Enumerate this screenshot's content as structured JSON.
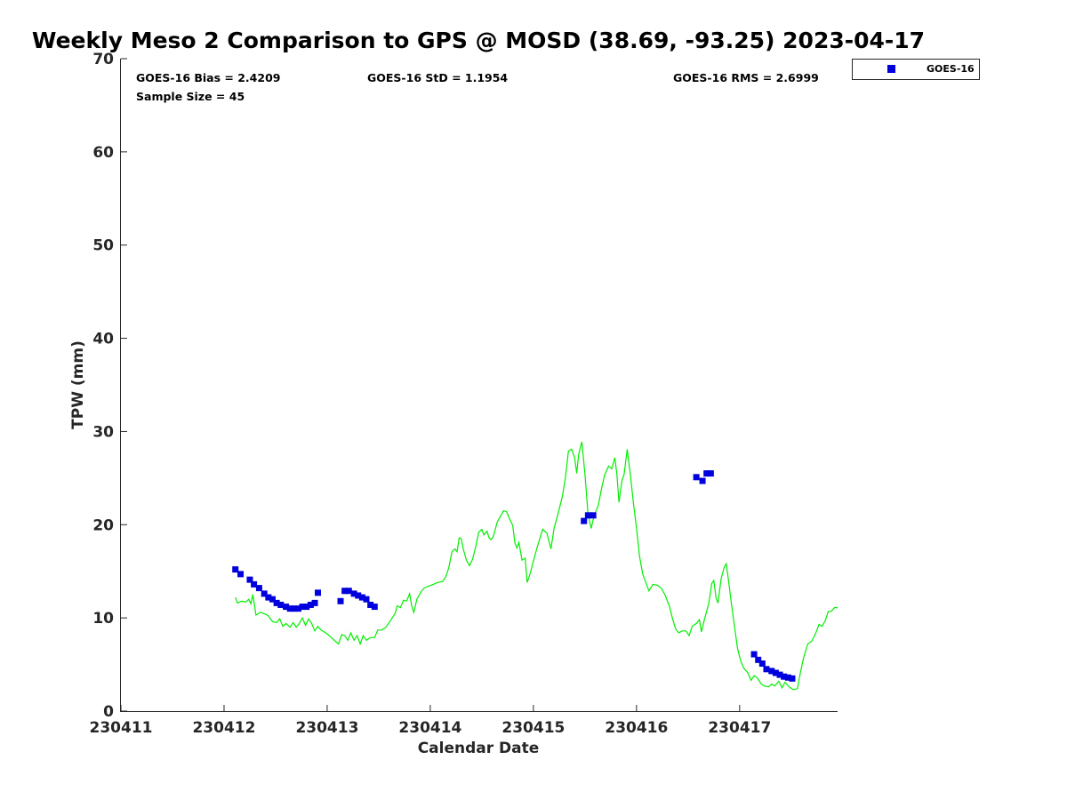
{
  "chart_data": {
    "type": "scatter",
    "title": "Weekly Meso 2 Comparison to GPS @ MOSD (38.69, -93.25) 2023-04-17",
    "xlabel": "Calendar Date",
    "ylabel": "TPW (mm)",
    "xlim": [
      0,
      6.95
    ],
    "ylim": [
      0,
      70
    ],
    "x_unit": "days since 230411",
    "x_ticks": [
      {
        "value": 0,
        "label": "230411"
      },
      {
        "value": 1,
        "label": "230412"
      },
      {
        "value": 2,
        "label": "230413"
      },
      {
        "value": 3,
        "label": "230414"
      },
      {
        "value": 4,
        "label": "230415"
      },
      {
        "value": 5,
        "label": "230416"
      },
      {
        "value": 6,
        "label": "230417"
      }
    ],
    "y_ticks": [
      0,
      10,
      20,
      30,
      40,
      50,
      60,
      70
    ],
    "grid": false,
    "legend_position": "top-right",
    "stats": {
      "bias": "GOES-16 Bias = 2.4209",
      "std": "GOES-16 StD = 1.1954",
      "rms": "GOES-16 RMS = 2.6999",
      "sample": "Sample Size = 45"
    },
    "colors": {
      "goes": "#0000dd",
      "gps": "#00ee00"
    },
    "series": [
      {
        "name": "GOES-16",
        "kind": "scatter",
        "color": "#0000dd",
        "points": [
          [
            1.11,
            15.2
          ],
          [
            1.16,
            14.7
          ],
          [
            1.25,
            14.1
          ],
          [
            1.29,
            13.6
          ],
          [
            1.34,
            13.2
          ],
          [
            1.39,
            12.6
          ],
          [
            1.43,
            12.2
          ],
          [
            1.47,
            12.0
          ],
          [
            1.51,
            11.6
          ],
          [
            1.55,
            11.4
          ],
          [
            1.6,
            11.2
          ],
          [
            1.64,
            11.0
          ],
          [
            1.68,
            11.0
          ],
          [
            1.72,
            11.0
          ],
          [
            1.76,
            11.2
          ],
          [
            1.8,
            11.2
          ],
          [
            1.84,
            11.4
          ],
          [
            1.88,
            11.6
          ],
          [
            1.91,
            12.7
          ],
          [
            2.13,
            11.8
          ],
          [
            2.17,
            12.9
          ],
          [
            2.21,
            12.9
          ],
          [
            2.26,
            12.6
          ],
          [
            2.3,
            12.4
          ],
          [
            2.34,
            12.2
          ],
          [
            2.38,
            12.0
          ],
          [
            2.42,
            11.4
          ],
          [
            2.46,
            11.2
          ],
          [
            4.49,
            20.4
          ],
          [
            4.53,
            21.0
          ],
          [
            4.58,
            21.0
          ],
          [
            5.58,
            25.1
          ],
          [
            5.64,
            24.7
          ],
          [
            5.68,
            25.5
          ],
          [
            5.72,
            25.5
          ],
          [
            6.14,
            6.1
          ],
          [
            6.18,
            5.5
          ],
          [
            6.22,
            5.1
          ],
          [
            6.26,
            4.5
          ],
          [
            6.31,
            4.3
          ],
          [
            6.35,
            4.1
          ],
          [
            6.39,
            3.9
          ],
          [
            6.43,
            3.7
          ],
          [
            6.47,
            3.6
          ],
          [
            6.51,
            3.5
          ]
        ]
      },
      {
        "kind": "line",
        "color": "#00ee00",
        "points": [
          [
            1.11,
            12.2
          ],
          [
            1.13,
            11.6
          ],
          [
            1.17,
            11.8
          ],
          [
            1.21,
            11.7
          ],
          [
            1.24,
            12.0
          ],
          [
            1.26,
            11.5
          ],
          [
            1.28,
            12.5
          ],
          [
            1.31,
            10.3
          ],
          [
            1.35,
            10.6
          ],
          [
            1.4,
            10.4
          ],
          [
            1.43,
            10.2
          ],
          [
            1.47,
            9.6
          ],
          [
            1.51,
            9.5
          ],
          [
            1.54,
            9.9
          ],
          [
            1.57,
            9.1
          ],
          [
            1.6,
            9.4
          ],
          [
            1.64,
            9.0
          ],
          [
            1.67,
            9.5
          ],
          [
            1.7,
            9.0
          ],
          [
            1.73,
            9.4
          ],
          [
            1.76,
            10.0
          ],
          [
            1.79,
            9.2
          ],
          [
            1.82,
            9.9
          ],
          [
            1.85,
            9.4
          ],
          [
            1.88,
            8.6
          ],
          [
            1.91,
            9.1
          ],
          [
            1.94,
            8.7
          ],
          [
            1.97,
            8.5
          ],
          [
            2.01,
            8.2
          ],
          [
            2.06,
            7.7
          ],
          [
            2.11,
            7.2
          ],
          [
            2.14,
            8.2
          ],
          [
            2.17,
            8.1
          ],
          [
            2.2,
            7.6
          ],
          [
            2.23,
            8.4
          ],
          [
            2.26,
            7.6
          ],
          [
            2.29,
            8.1
          ],
          [
            2.32,
            7.2
          ],
          [
            2.35,
            8.1
          ],
          [
            2.38,
            7.6
          ],
          [
            2.42,
            7.9
          ],
          [
            2.46,
            7.9
          ],
          [
            2.49,
            8.7
          ],
          [
            2.53,
            8.7
          ],
          [
            2.57,
            9.0
          ],
          [
            2.62,
            9.8
          ],
          [
            2.66,
            10.5
          ],
          [
            2.68,
            11.3
          ],
          [
            2.71,
            11.1
          ],
          [
            2.74,
            11.9
          ],
          [
            2.77,
            11.8
          ],
          [
            2.8,
            12.6
          ],
          [
            2.82,
            11.3
          ],
          [
            2.84,
            10.6
          ],
          [
            2.87,
            12.0
          ],
          [
            2.91,
            12.8
          ],
          [
            2.94,
            13.2
          ],
          [
            2.98,
            13.4
          ],
          [
            3.03,
            13.6
          ],
          [
            3.07,
            13.8
          ],
          [
            3.12,
            13.9
          ],
          [
            3.15,
            14.4
          ],
          [
            3.18,
            15.4
          ],
          [
            3.21,
            17.1
          ],
          [
            3.24,
            17.4
          ],
          [
            3.26,
            17.1
          ],
          [
            3.28,
            18.6
          ],
          [
            3.3,
            18.5
          ],
          [
            3.32,
            17.4
          ],
          [
            3.35,
            16.2
          ],
          [
            3.38,
            15.6
          ],
          [
            3.41,
            16.3
          ],
          [
            3.44,
            17.6
          ],
          [
            3.47,
            19.2
          ],
          [
            3.5,
            19.5
          ],
          [
            3.52,
            18.9
          ],
          [
            3.55,
            19.3
          ],
          [
            3.57,
            18.6
          ],
          [
            3.59,
            18.4
          ],
          [
            3.61,
            18.7
          ],
          [
            3.63,
            19.5
          ],
          [
            3.65,
            20.3
          ],
          [
            3.68,
            20.9
          ],
          [
            3.71,
            21.5
          ],
          [
            3.74,
            21.4
          ],
          [
            3.77,
            20.6
          ],
          [
            3.8,
            19.9
          ],
          [
            3.82,
            18.1
          ],
          [
            3.84,
            17.5
          ],
          [
            3.86,
            18.1
          ],
          [
            3.89,
            16.2
          ],
          [
            3.92,
            16.4
          ],
          [
            3.94,
            13.8
          ],
          [
            3.97,
            14.8
          ],
          [
            4.0,
            16.1
          ],
          [
            4.04,
            17.7
          ],
          [
            4.09,
            19.5
          ],
          [
            4.13,
            19.1
          ],
          [
            4.17,
            17.4
          ],
          [
            4.2,
            19.6
          ],
          [
            4.24,
            21.2
          ],
          [
            4.28,
            23.0
          ],
          [
            4.31,
            25.0
          ],
          [
            4.34,
            27.9
          ],
          [
            4.37,
            28.1
          ],
          [
            4.4,
            27.2
          ],
          [
            4.42,
            25.5
          ],
          [
            4.44,
            27.6
          ],
          [
            4.47,
            28.9
          ],
          [
            4.5,
            25.4
          ],
          [
            4.53,
            21.1
          ],
          [
            4.56,
            19.6
          ],
          [
            4.59,
            21.0
          ],
          [
            4.63,
            22.1
          ],
          [
            4.66,
            23.8
          ],
          [
            4.69,
            25.3
          ],
          [
            4.73,
            26.3
          ],
          [
            4.76,
            26.0
          ],
          [
            4.79,
            27.2
          ],
          [
            4.81,
            25.4
          ],
          [
            4.83,
            22.4
          ],
          [
            4.86,
            24.8
          ],
          [
            4.88,
            25.4
          ],
          [
            4.91,
            28.1
          ],
          [
            4.94,
            25.4
          ],
          [
            4.97,
            22.3
          ],
          [
            5.0,
            19.6
          ],
          [
            5.03,
            16.6
          ],
          [
            5.06,
            14.7
          ],
          [
            5.09,
            13.8
          ],
          [
            5.12,
            12.9
          ],
          [
            5.16,
            13.6
          ],
          [
            5.2,
            13.5
          ],
          [
            5.24,
            13.2
          ],
          [
            5.28,
            12.4
          ],
          [
            5.32,
            11.2
          ],
          [
            5.35,
            9.9
          ],
          [
            5.38,
            8.8
          ],
          [
            5.41,
            8.4
          ],
          [
            5.44,
            8.6
          ],
          [
            5.48,
            8.6
          ],
          [
            5.51,
            8.1
          ],
          [
            5.54,
            9.1
          ],
          [
            5.58,
            9.4
          ],
          [
            5.61,
            9.8
          ],
          [
            5.63,
            8.5
          ],
          [
            5.66,
            9.9
          ],
          [
            5.7,
            11.5
          ],
          [
            5.73,
            13.7
          ],
          [
            5.75,
            14.0
          ],
          [
            5.77,
            12.2
          ],
          [
            5.79,
            11.6
          ],
          [
            5.82,
            14.2
          ],
          [
            5.85,
            15.4
          ],
          [
            5.87,
            15.8
          ],
          [
            5.89,
            14.2
          ],
          [
            5.92,
            11.6
          ],
          [
            5.95,
            9.1
          ],
          [
            5.98,
            6.7
          ],
          [
            6.01,
            5.4
          ],
          [
            6.04,
            4.6
          ],
          [
            6.08,
            4.1
          ],
          [
            6.11,
            3.3
          ],
          [
            6.14,
            3.8
          ],
          [
            6.17,
            3.6
          ],
          [
            6.21,
            2.9
          ],
          [
            6.24,
            2.7
          ],
          [
            6.28,
            2.6
          ],
          [
            6.31,
            2.9
          ],
          [
            6.34,
            2.7
          ],
          [
            6.38,
            3.2
          ],
          [
            6.41,
            2.5
          ],
          [
            6.44,
            3.1
          ],
          [
            6.48,
            2.6
          ],
          [
            6.52,
            2.3
          ],
          [
            6.56,
            2.4
          ],
          [
            6.59,
            4.2
          ],
          [
            6.62,
            5.7
          ],
          [
            6.66,
            7.2
          ],
          [
            6.7,
            7.5
          ],
          [
            6.74,
            8.4
          ],
          [
            6.77,
            9.3
          ],
          [
            6.8,
            9.1
          ],
          [
            6.83,
            9.7
          ],
          [
            6.86,
            10.7
          ],
          [
            6.89,
            10.7
          ],
          [
            6.92,
            11.1
          ],
          [
            6.95,
            11.1
          ]
        ]
      }
    ]
  }
}
